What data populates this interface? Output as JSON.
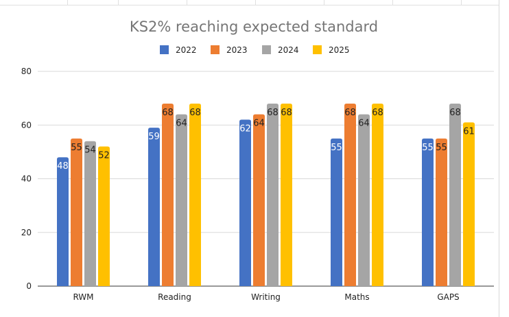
{
  "chart_data": {
    "type": "bar",
    "title": "KS2% reaching expected standard",
    "xlabel": "",
    "ylabel": "",
    "categories": [
      "RWM",
      "Reading",
      "Writing",
      "Maths",
      "GAPS"
    ],
    "series": [
      {
        "name": "2022",
        "color": "#4472c4",
        "label_color": "#ffffff",
        "values": [
          48,
          59,
          62,
          55,
          55
        ]
      },
      {
        "name": "2023",
        "color": "#ed7d31",
        "label_color": "#222222",
        "values": [
          55,
          68,
          64,
          68,
          55
        ]
      },
      {
        "name": "2024",
        "color": "#a5a5a5",
        "label_color": "#222222",
        "values": [
          54,
          64,
          68,
          64,
          68
        ]
      },
      {
        "name": "2025",
        "color": "#ffc000",
        "label_color": "#222222",
        "values": [
          52,
          68,
          68,
          68,
          61
        ]
      }
    ],
    "ylim": [
      0,
      80
    ],
    "yticks": [
      0,
      20,
      40,
      60,
      80
    ],
    "grid": true,
    "legend_position": "top",
    "data_labels": true
  }
}
